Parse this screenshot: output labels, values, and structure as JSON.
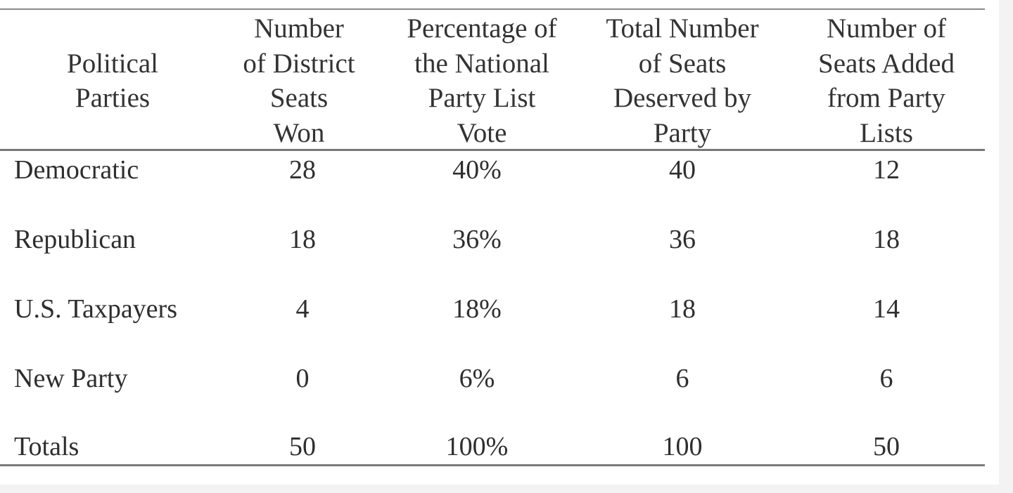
{
  "table": {
    "headers": [
      "Political\nParties",
      "Number\nof District\nSeats\nWon",
      "Percentage of\nthe National\nParty List\nVote",
      "Total Number\nof Seats\nDeserved by\nParty",
      "Number of\nSeats Added\nfrom Party\nLists"
    ],
    "rows": [
      [
        "Democratic",
        "28",
        "40%",
        "40",
        "12"
      ],
      [
        "Republican",
        "18",
        "36%",
        "36",
        "18"
      ],
      [
        "U.S. Taxpayers",
        "4",
        "18%",
        "18",
        "14"
      ],
      [
        "New Party",
        "0",
        "6%",
        "6",
        "6"
      ],
      [
        "Totals",
        "50",
        "100%",
        "100",
        "50"
      ]
    ]
  }
}
